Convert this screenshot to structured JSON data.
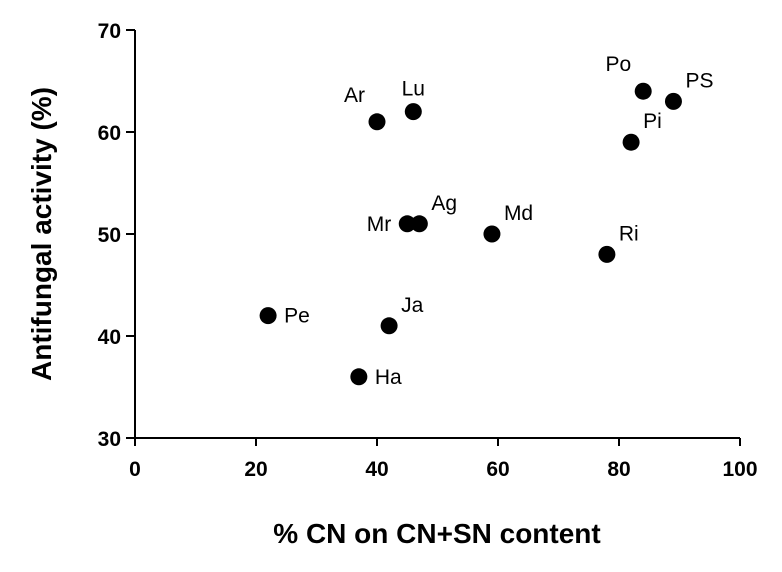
{
  "chart_data": {
    "type": "scatter",
    "title": "",
    "xlabel": "% CN on CN+SN content",
    "ylabel": "Antifungal activity (%)",
    "xlim": [
      0,
      100
    ],
    "ylim": [
      30,
      70
    ],
    "x_ticks": [
      0,
      20,
      40,
      60,
      80,
      100
    ],
    "y_ticks": [
      30,
      40,
      50,
      60,
      70
    ],
    "grid": false,
    "legend": "none",
    "marker_color": "#000000",
    "points": [
      {
        "label": "Pe",
        "x": 22,
        "y": 42,
        "pos": "right"
      },
      {
        "label": "Ha",
        "x": 37,
        "y": 36,
        "pos": "right"
      },
      {
        "label": "Ar",
        "x": 40,
        "y": 61,
        "pos": "upper-left"
      },
      {
        "label": "Ja",
        "x": 42,
        "y": 41,
        "pos": "upper-right"
      },
      {
        "label": "Mr",
        "x": 45,
        "y": 51,
        "pos": "left"
      },
      {
        "label": "Lu",
        "x": 46,
        "y": 62,
        "pos": "above"
      },
      {
        "label": "Ag",
        "x": 47,
        "y": 51,
        "pos": "upper-right"
      },
      {
        "label": "Md",
        "x": 59,
        "y": 50,
        "pos": "upper-right"
      },
      {
        "label": "Ri",
        "x": 78,
        "y": 48,
        "pos": "upper-right"
      },
      {
        "label": "Pi",
        "x": 82,
        "y": 59,
        "pos": "upper-right"
      },
      {
        "label": "Po",
        "x": 84,
        "y": 64,
        "pos": "upper-left"
      },
      {
        "label": "PS",
        "x": 89,
        "y": 63,
        "pos": "upper-right"
      }
    ]
  }
}
